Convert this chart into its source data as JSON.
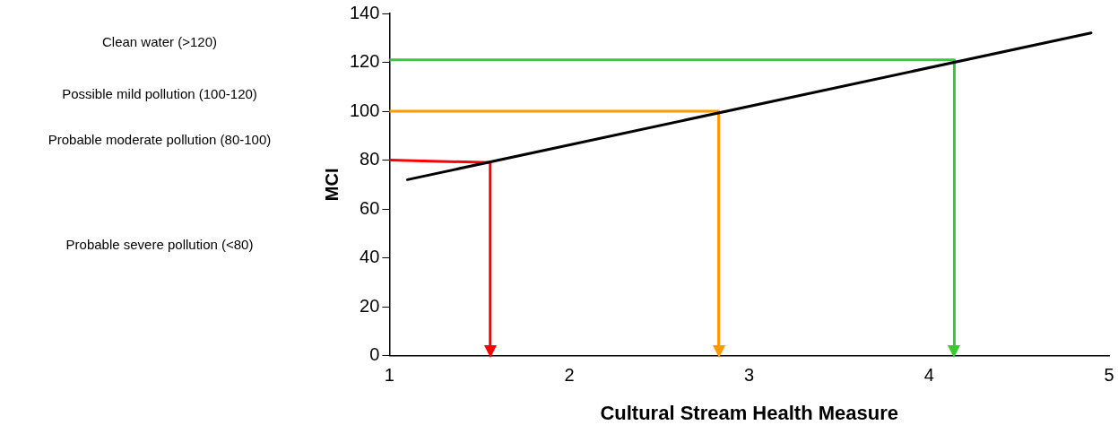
{
  "chart_data": {
    "type": "line",
    "xlabel": "Cultural Stream Health Measure",
    "ylabel": "MCI",
    "xlim": [
      1,
      5
    ],
    "xticks": [
      1,
      2,
      3,
      4,
      5
    ],
    "ylim": [
      0,
      140
    ],
    "yticks": [
      0,
      20,
      40,
      60,
      80,
      100,
      120,
      140
    ],
    "grid": false,
    "legend": false,
    "marker": "none",
    "line_style": "solid",
    "series": [
      {
        "color": "#000000",
        "x": [
          1.1,
          4.9
        ],
        "values": [
          72,
          132
        ]
      },
      {
        "color": "#ff0000",
        "x": [
          1,
          1.56,
          1.56
        ],
        "values": [
          80,
          79,
          2
        ]
      },
      {
        "color": "#ff9900",
        "x": [
          1,
          2.83,
          2.83
        ],
        "values": [
          100,
          100,
          2
        ]
      },
      {
        "color": "#33cc33",
        "x": [
          1,
          4.14,
          4.14
        ],
        "values": [
          121,
          121,
          2
        ]
      }
    ],
    "annotations": [
      "Clean water (>120)",
      "Possible mild pollution (100-120)",
      "Probable moderate pollution (80-100)",
      "Probable severe pollution (<80)"
    ]
  }
}
